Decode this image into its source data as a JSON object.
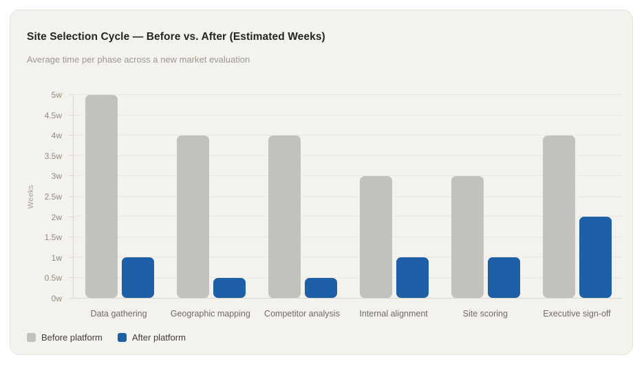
{
  "card": {
    "title": "Site Selection Cycle — Before vs. After (Estimated Weeks)",
    "subtitle": "Average time per phase across a new market evaluation"
  },
  "chart_data": {
    "type": "bar",
    "title": "Site Selection Cycle — Before vs. After (Estimated Weeks)",
    "subtitle": "Average time per phase across a new market evaluation",
    "categories": [
      "Data gathering",
      "Geographic mapping",
      "Competitor analysis",
      "Internal alignment",
      "Site scoring",
      "Executive sign-off"
    ],
    "series": [
      {
        "name": "Before platform",
        "color": "#c2c1bc",
        "values": [
          5,
          4,
          4,
          3,
          3,
          4
        ]
      },
      {
        "name": "After platform",
        "color": "#1f5fa8",
        "values": [
          1,
          0.5,
          0.5,
          1,
          1,
          2
        ]
      }
    ],
    "xlabel": "",
    "ylabel": "Weeks",
    "ylim": [
      0,
      5
    ],
    "ytick_step": 0.5,
    "ytick_suffix": "w",
    "grid": true,
    "legend_position": "bottom-left"
  },
  "colors": {
    "page_background": "#ffffff",
    "card_background": "#f4f2ed",
    "card_border": "#e6e3da",
    "gridline": "#eae8e1",
    "axis_line": "#d8d5cb",
    "title_text": "#26241e",
    "subtitle_text": "#9b988f",
    "tick_text": "#8d8a80",
    "category_text": "#6e6b62",
    "legend_text": "#3f3d36",
    "bar_before": "#c2c1bc",
    "bar_after": "#1f5fa8"
  }
}
